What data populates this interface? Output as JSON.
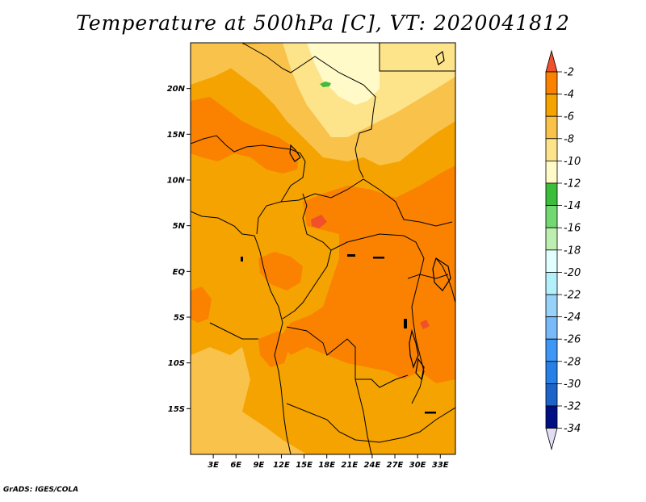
{
  "title": "Temperature at 500hPa [C], VT: 2020041812",
  "footer": "GrADS: IGES/COLA",
  "map": {
    "lat_range": [
      -20,
      25
    ],
    "lon_range": [
      0,
      35
    ],
    "lat_ticks": [
      {
        "value": 20,
        "label": "20N"
      },
      {
        "value": 15,
        "label": "15N"
      },
      {
        "value": 10,
        "label": "10N"
      },
      {
        "value": 5,
        "label": "5N"
      },
      {
        "value": 0,
        "label": "EQ"
      },
      {
        "value": -5,
        "label": "5S"
      },
      {
        "value": -10,
        "label": "10S"
      },
      {
        "value": -15,
        "label": "15S"
      }
    ],
    "lon_ticks": [
      {
        "value": 3,
        "label": "3E"
      },
      {
        "value": 6,
        "label": "6E"
      },
      {
        "value": 9,
        "label": "9E"
      },
      {
        "value": 12,
        "label": "12E"
      },
      {
        "value": 15,
        "label": "15E"
      },
      {
        "value": 18,
        "label": "18E"
      },
      {
        "value": 21,
        "label": "21E"
      },
      {
        "value": 24,
        "label": "24E"
      },
      {
        "value": 27,
        "label": "27E"
      },
      {
        "value": 30,
        "label": "30E"
      },
      {
        "value": 33,
        "label": "33E"
      }
    ],
    "base_color": "#f5a300"
  },
  "colorbar": {
    "labels": [
      "-2",
      "-4",
      "-6",
      "-8",
      "-10",
      "-12",
      "-14",
      "-16",
      "-18",
      "-20",
      "-22",
      "-24",
      "-26",
      "-28",
      "-30",
      "-32",
      "-34"
    ],
    "colors": [
      "#f0502a",
      "#fa8200",
      "#f5a300",
      "#f9c24a",
      "#fde38a",
      "#fffac8",
      "#3cbe3c",
      "#72d872",
      "#bdf0b0",
      "#e1ffff",
      "#b4f0fa",
      "#96d2fa",
      "#78b9fa",
      "#3c97f5",
      "#2880e6",
      "#1e64c8",
      "#000f82"
    ],
    "top_arrow_color": "#f0502a",
    "bottom_arrow_color": "#e1ddf5"
  }
}
